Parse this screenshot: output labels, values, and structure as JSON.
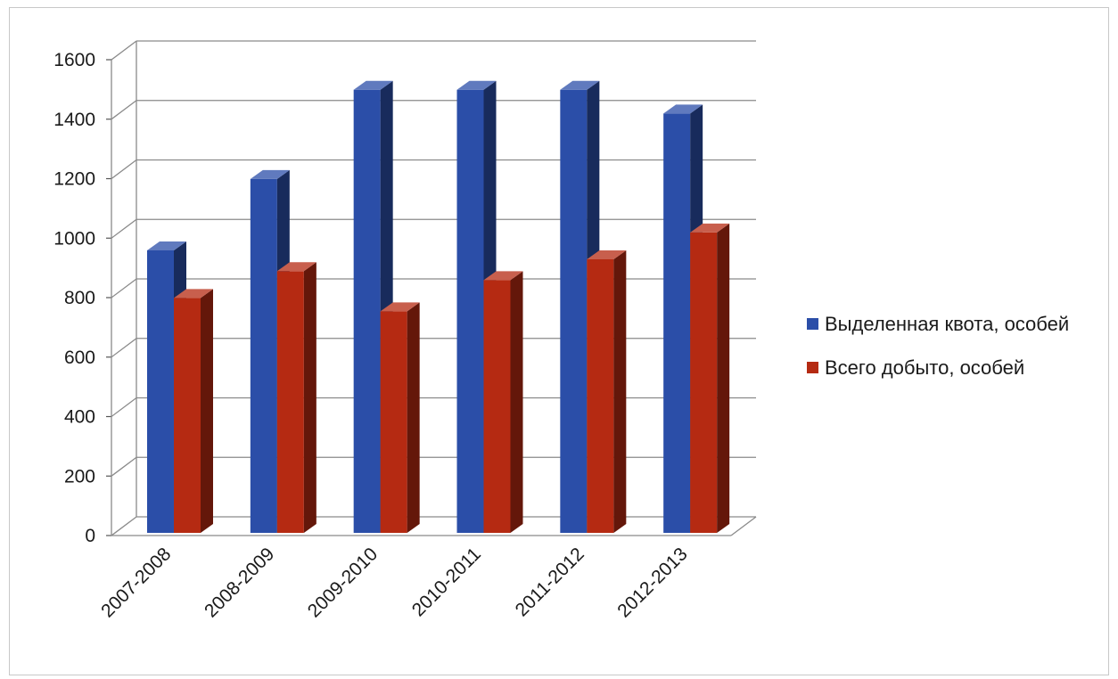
{
  "chart_data": {
    "type": "bar",
    "categories": [
      "2007-2008",
      "2008-2009",
      "2009-2010",
      "2010-2011",
      "2011-2012",
      "2012-2013"
    ],
    "series": [
      {
        "name": "Выделенная квота, особей",
        "values": [
          950,
          1190,
          1490,
          1490,
          1490,
          1410
        ],
        "color": "#2b4ea8"
      },
      {
        "name": "Всего добыто, особей",
        "values": [
          790,
          880,
          745,
          850,
          920,
          1010
        ],
        "color": "#b52a12"
      }
    ],
    "ylim": [
      0,
      1600
    ],
    "yticks": [
      0,
      200,
      400,
      600,
      800,
      1000,
      1200,
      1400,
      1600
    ],
    "grid": true,
    "legend": "right",
    "style": "3d-column"
  }
}
